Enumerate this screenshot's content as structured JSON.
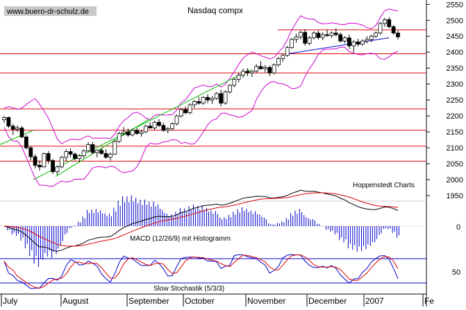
{
  "chart_data": {
    "type": "candlestick",
    "title": "Nasdaq compx",
    "watermark": "www.buero-dr-schulz.de",
    "source_label": "Hoppenstedt Charts",
    "price_axis": {
      "ticks": [
        1950,
        2000,
        2050,
        2100,
        2150,
        2200,
        2250,
        2300,
        2350,
        2400,
        2450,
        2500,
        2550
      ],
      "range": [
        1950,
        2555
      ]
    },
    "x_labels": [
      "July",
      "August",
      "September",
      "October",
      "November",
      "December",
      "2007",
      "Fe"
    ],
    "horizontal_levels": [
      2470,
      2395,
      2335,
      2222,
      2155,
      2105,
      2058
    ],
    "price_series": [
      [
        2188,
        2200,
        2178,
        2195
      ],
      [
        2195,
        2198,
        2162,
        2168
      ],
      [
        2168,
        2175,
        2140,
        2158
      ],
      [
        2158,
        2170,
        2150,
        2162
      ],
      [
        2162,
        2168,
        2130,
        2134
      ],
      [
        2134,
        2140,
        2095,
        2100
      ],
      [
        2100,
        2105,
        2060,
        2072
      ],
      [
        2072,
        2080,
        2035,
        2045
      ],
      [
        2045,
        2060,
        2028,
        2040
      ],
      [
        2040,
        2085,
        2038,
        2082
      ],
      [
        2082,
        2090,
        2050,
        2060
      ],
      [
        2060,
        2065,
        2018,
        2025
      ],
      [
        2025,
        2045,
        2015,
        2040
      ],
      [
        2040,
        2075,
        2035,
        2070
      ],
      [
        2070,
        2095,
        2058,
        2088
      ],
      [
        2088,
        2098,
        2070,
        2080
      ],
      [
        2080,
        2085,
        2060,
        2066
      ],
      [
        2066,
        2080,
        2055,
        2075
      ],
      [
        2075,
        2095,
        2068,
        2090
      ],
      [
        2090,
        2118,
        2085,
        2110
      ],
      [
        2110,
        2118,
        2080,
        2085
      ],
      [
        2085,
        2095,
        2070,
        2092
      ],
      [
        2092,
        2100,
        2078,
        2082
      ],
      [
        2082,
        2095,
        2065,
        2070
      ],
      [
        2070,
        2085,
        2060,
        2080
      ],
      [
        2080,
        2125,
        2078,
        2120
      ],
      [
        2120,
        2150,
        2115,
        2145
      ],
      [
        2145,
        2165,
        2138,
        2150
      ],
      [
        2150,
        2160,
        2135,
        2140
      ],
      [
        2140,
        2160,
        2136,
        2155
      ],
      [
        2155,
        2162,
        2140,
        2145
      ],
      [
        2145,
        2155,
        2135,
        2150
      ],
      [
        2150,
        2172,
        2146,
        2168
      ],
      [
        2168,
        2180,
        2160,
        2162
      ],
      [
        2162,
        2185,
        2155,
        2180
      ],
      [
        2180,
        2190,
        2165,
        2170
      ],
      [
        2170,
        2178,
        2150,
        2155
      ],
      [
        2155,
        2165,
        2145,
        2160
      ],
      [
        2160,
        2180,
        2155,
        2175
      ],
      [
        2175,
        2205,
        2170,
        2200
      ],
      [
        2200,
        2225,
        2195,
        2220
      ],
      [
        2220,
        2230,
        2205,
        2210
      ],
      [
        2210,
        2240,
        2205,
        2235
      ],
      [
        2235,
        2250,
        2225,
        2245
      ],
      [
        2245,
        2260,
        2235,
        2240
      ],
      [
        2240,
        2262,
        2235,
        2258
      ],
      [
        2258,
        2268,
        2240,
        2250
      ],
      [
        2250,
        2262,
        2238,
        2255
      ],
      [
        2255,
        2275,
        2250,
        2270
      ],
      [
        2270,
        2282,
        2230,
        2240
      ],
      [
        2240,
        2280,
        2235,
        2275
      ],
      [
        2275,
        2300,
        2270,
        2296
      ],
      [
        2296,
        2320,
        2290,
        2315
      ],
      [
        2315,
        2335,
        2305,
        2328
      ],
      [
        2328,
        2348,
        2320,
        2340
      ],
      [
        2340,
        2350,
        2325,
        2335
      ],
      [
        2335,
        2345,
        2322,
        2340
      ],
      [
        2340,
        2362,
        2335,
        2355
      ],
      [
        2355,
        2372,
        2345,
        2348
      ],
      [
        2348,
        2360,
        2336,
        2352
      ],
      [
        2352,
        2358,
        2325,
        2335
      ],
      [
        2335,
        2365,
        2330,
        2360
      ],
      [
        2360,
        2385,
        2355,
        2380
      ],
      [
        2380,
        2395,
        2370,
        2390
      ],
      [
        2390,
        2420,
        2385,
        2415
      ],
      [
        2415,
        2445,
        2410,
        2440
      ],
      [
        2440,
        2458,
        2430,
        2448
      ],
      [
        2448,
        2468,
        2440,
        2462
      ],
      [
        2462,
        2472,
        2420,
        2428
      ],
      [
        2428,
        2450,
        2422,
        2445
      ],
      [
        2445,
        2465,
        2440,
        2460
      ],
      [
        2460,
        2468,
        2440,
        2446
      ],
      [
        2446,
        2462,
        2438,
        2455
      ],
      [
        2455,
        2470,
        2448,
        2452
      ],
      [
        2452,
        2465,
        2445,
        2460
      ],
      [
        2460,
        2475,
        2450,
        2455
      ],
      [
        2455,
        2462,
        2430,
        2435
      ],
      [
        2435,
        2450,
        2428,
        2445
      ],
      [
        2445,
        2455,
        2410,
        2420
      ],
      [
        2420,
        2438,
        2400,
        2432
      ],
      [
        2432,
        2442,
        2418,
        2425
      ],
      [
        2425,
        2440,
        2420,
        2435
      ],
      [
        2435,
        2450,
        2428,
        2440
      ],
      [
        2440,
        2455,
        2432,
        2450
      ],
      [
        2450,
        2465,
        2445,
        2460
      ],
      [
        2460,
        2495,
        2455,
        2490
      ],
      [
        2490,
        2508,
        2480,
        2502
      ],
      [
        2502,
        2510,
        2475,
        2480
      ],
      [
        2480,
        2485,
        2455,
        2460
      ],
      [
        2460,
        2468,
        2440,
        2448
      ]
    ],
    "macd_panel": {
      "label": "MACD (12/26/9) mit Histogramm",
      "ticks": [
        0
      ]
    },
    "stochastic_panel": {
      "label": "Slow Stochastik (5/3/3)",
      "ticks": [
        50
      ]
    }
  }
}
